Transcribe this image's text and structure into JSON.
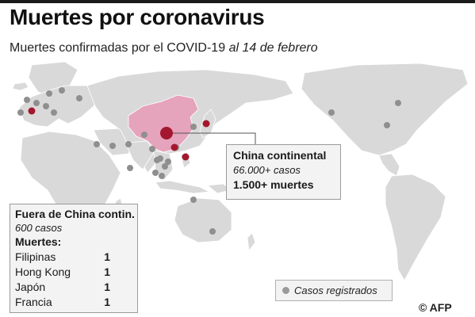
{
  "header": {
    "title": "Muertes por coronavirus",
    "subtitle_main": "Muertes confirmadas por el COVID-19",
    "subtitle_date": "al 14 de febrero"
  },
  "china_box": {
    "title": "China continental",
    "cases": "66.000+ casos",
    "deaths": "1.500+ muertes"
  },
  "outside_box": {
    "title": "Fuera de China contin.",
    "cases": "600 casos",
    "deaths_heading": "Muertes:",
    "rows": [
      {
        "country": "Filipinas",
        "deaths": "1"
      },
      {
        "country": "Hong Kong",
        "deaths": "1"
      },
      {
        "country": "Japón",
        "deaths": "1"
      },
      {
        "country": "Francia",
        "deaths": "1"
      }
    ]
  },
  "legend": {
    "label": "Casos registrados"
  },
  "credit": "© AFP",
  "colors": {
    "land": "#d9d9d9",
    "china": "#e6a3bc",
    "death_marker": "#a3182e",
    "case_marker": "#8f8f8f"
  }
}
